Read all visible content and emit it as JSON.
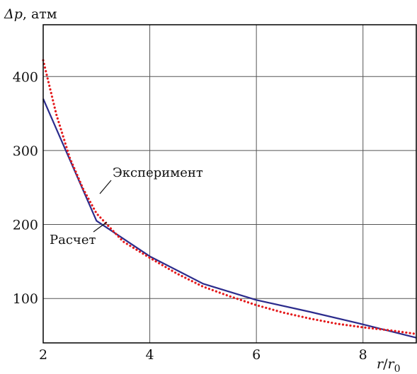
{
  "chart_data": {
    "type": "line",
    "ylabel": {
      "symbol": "Δp",
      "unit": ", атм"
    },
    "xlabel": {
      "numerator": "r",
      "slash": "/",
      "denominator": "r",
      "subscript": "0"
    },
    "xlim": [
      2,
      9
    ],
    "ylim": [
      40,
      470
    ],
    "xticks": [
      "2",
      "4",
      "6",
      "8"
    ],
    "yticks": [
      "100",
      "200",
      "300",
      "400"
    ],
    "grid": true,
    "series": [
      {
        "name": "Расчет",
        "style": "solid",
        "color": "#2b2b8c",
        "x": [
          2,
          3,
          4,
          5,
          6,
          7,
          8,
          9
        ],
        "y": [
          370,
          205,
          157,
          120,
          98,
          82,
          65,
          47
        ]
      },
      {
        "name": "Эксперимент",
        "style": "dotted",
        "color": "#e41a1c",
        "x": [
          2,
          2.25,
          2.5,
          2.75,
          3,
          3.5,
          4,
          4.5,
          5,
          5.5,
          6,
          6.5,
          7,
          7.5,
          8,
          8.5,
          9
        ],
        "y": [
          422,
          348,
          290,
          248,
          215,
          177,
          155,
          134,
          116,
          103,
          91,
          81,
          73,
          66,
          61,
          57,
          52
        ]
      }
    ]
  }
}
